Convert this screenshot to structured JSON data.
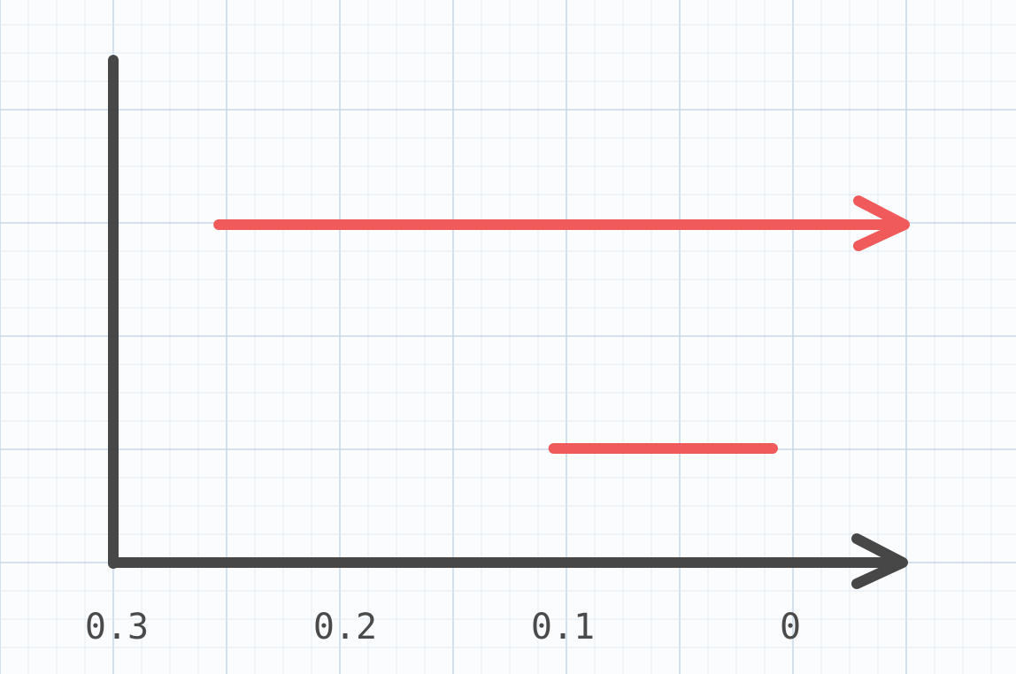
{
  "chart_data": {
    "type": "bar",
    "orientation": "horizontal",
    "x_axis": {
      "direction": "reversed",
      "ticks": [
        "0.3",
        "0.2",
        "0.1",
        "0"
      ],
      "range": [
        0.3,
        0.0
      ]
    },
    "intervals": [
      {
        "start": 0.26,
        "end": 0.0,
        "arrow_at_end": true,
        "color": "#f05a5a"
      },
      {
        "start": 0.133,
        "end": 0.05,
        "arrow_at_end": false,
        "color": "#f05a5a"
      }
    ],
    "grid": true,
    "axis_color": "#474747"
  }
}
